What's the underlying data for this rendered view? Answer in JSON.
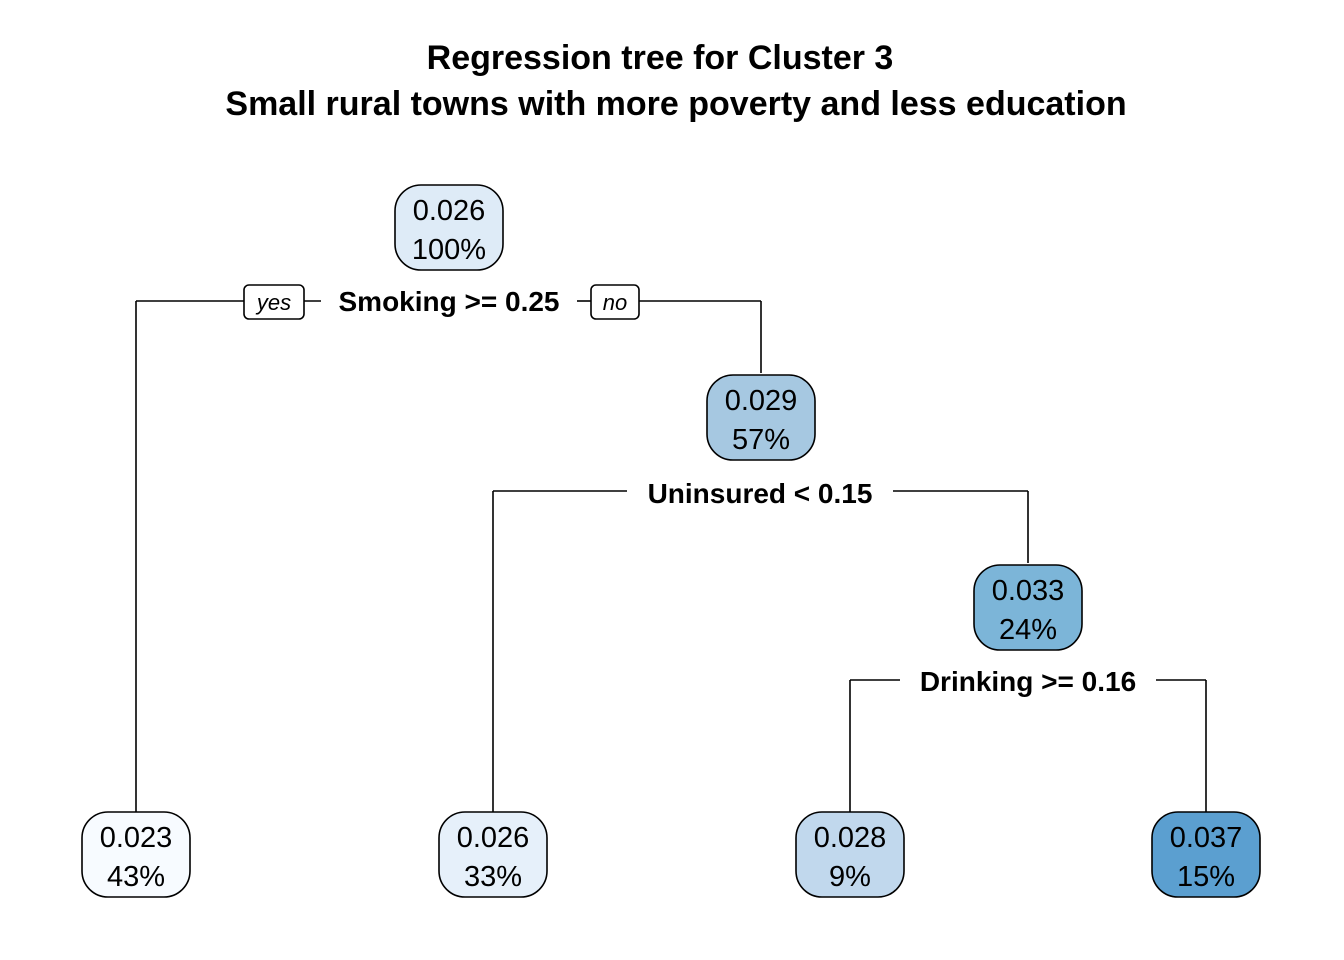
{
  "title": {
    "line1": "Regression tree for Cluster 3",
    "line2": "Small rural towns with more poverty and less education"
  },
  "branch_labels": {
    "yes": "yes",
    "no": "no"
  },
  "splits": {
    "root": "Smoking >= 0.25",
    "right": "Uninsured < 0.15",
    "right_right": "Drinking >= 0.16"
  },
  "nodes": {
    "root": {
      "value": "0.026",
      "percent": "100%",
      "fill": "#deebf7"
    },
    "n2": {
      "value": "0.029",
      "percent": "57%",
      "fill": "#a6c8e1"
    },
    "n3": {
      "value": "0.033",
      "percent": "24%",
      "fill": "#7cb5d8"
    },
    "leaf1": {
      "value": "0.023",
      "percent": "43%",
      "fill": "#f7fbff"
    },
    "leaf2": {
      "value": "0.026",
      "percent": "33%",
      "fill": "#e6f0fa"
    },
    "leaf3": {
      "value": "0.028",
      "percent": "9%",
      "fill": "#c1d8ed"
    },
    "leaf4": {
      "value": "0.037",
      "percent": "15%",
      "fill": "#5b9fd0"
    }
  }
}
